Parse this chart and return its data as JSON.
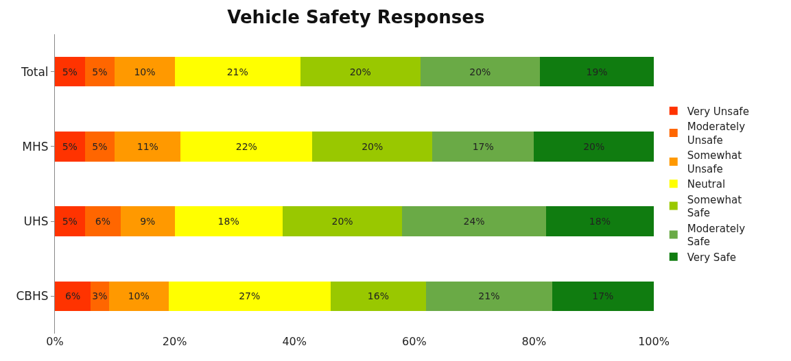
{
  "chart_data": {
    "type": "bar",
    "title": "Vehicle Safety Responses",
    "orientation": "horizontal",
    "stacked": true,
    "categories": [
      "Total",
      "MHS",
      "UHS",
      "CBHS"
    ],
    "series": [
      {
        "name": "Very Unsafe",
        "color": "#ff3300",
        "values": [
          5,
          5,
          5,
          6
        ],
        "value_labels": [
          "5%",
          "5%",
          "5%",
          "6%"
        ]
      },
      {
        "name": "Moderately Unsafe",
        "color": "#ff6600",
        "values": [
          5,
          5,
          6,
          3
        ],
        "value_labels": [
          "5%",
          "5%",
          "6%",
          "3%"
        ]
      },
      {
        "name": "Somewhat Unsafe",
        "color": "#ff9900",
        "values": [
          10,
          11,
          9,
          10
        ],
        "value_labels": [
          "10%",
          "11%",
          "9%",
          "10%"
        ]
      },
      {
        "name": "Neutral",
        "color": "#ffff00",
        "values": [
          21,
          22,
          18,
          27
        ],
        "value_labels": [
          "21%",
          "22%",
          "18%",
          "27%"
        ]
      },
      {
        "name": "Somewhat Safe",
        "color": "#99c800",
        "values": [
          20,
          20,
          20,
          16
        ],
        "value_labels": [
          "20%",
          "20%",
          "20%",
          "16%"
        ]
      },
      {
        "name": "Moderately Safe",
        "color": "#6aaa46",
        "values": [
          20,
          17,
          24,
          21
        ],
        "value_labels": [
          "20%",
          "17%",
          "24%",
          "21%"
        ]
      },
      {
        "name": "Very Safe",
        "color": "#107c10",
        "values": [
          19,
          20,
          18,
          17
        ],
        "value_labels": [
          "19%",
          "20%",
          "18%",
          "17%"
        ]
      }
    ],
    "xlim": [
      0,
      100
    ],
    "xticks": [
      {
        "value": 0,
        "label": "0%"
      },
      {
        "value": 20,
        "label": "20%"
      },
      {
        "value": 40,
        "label": "40%"
      },
      {
        "value": 60,
        "label": "60%"
      },
      {
        "value": 80,
        "label": "80%"
      },
      {
        "value": 100,
        "label": "100%"
      }
    ],
    "legend": "right"
  }
}
